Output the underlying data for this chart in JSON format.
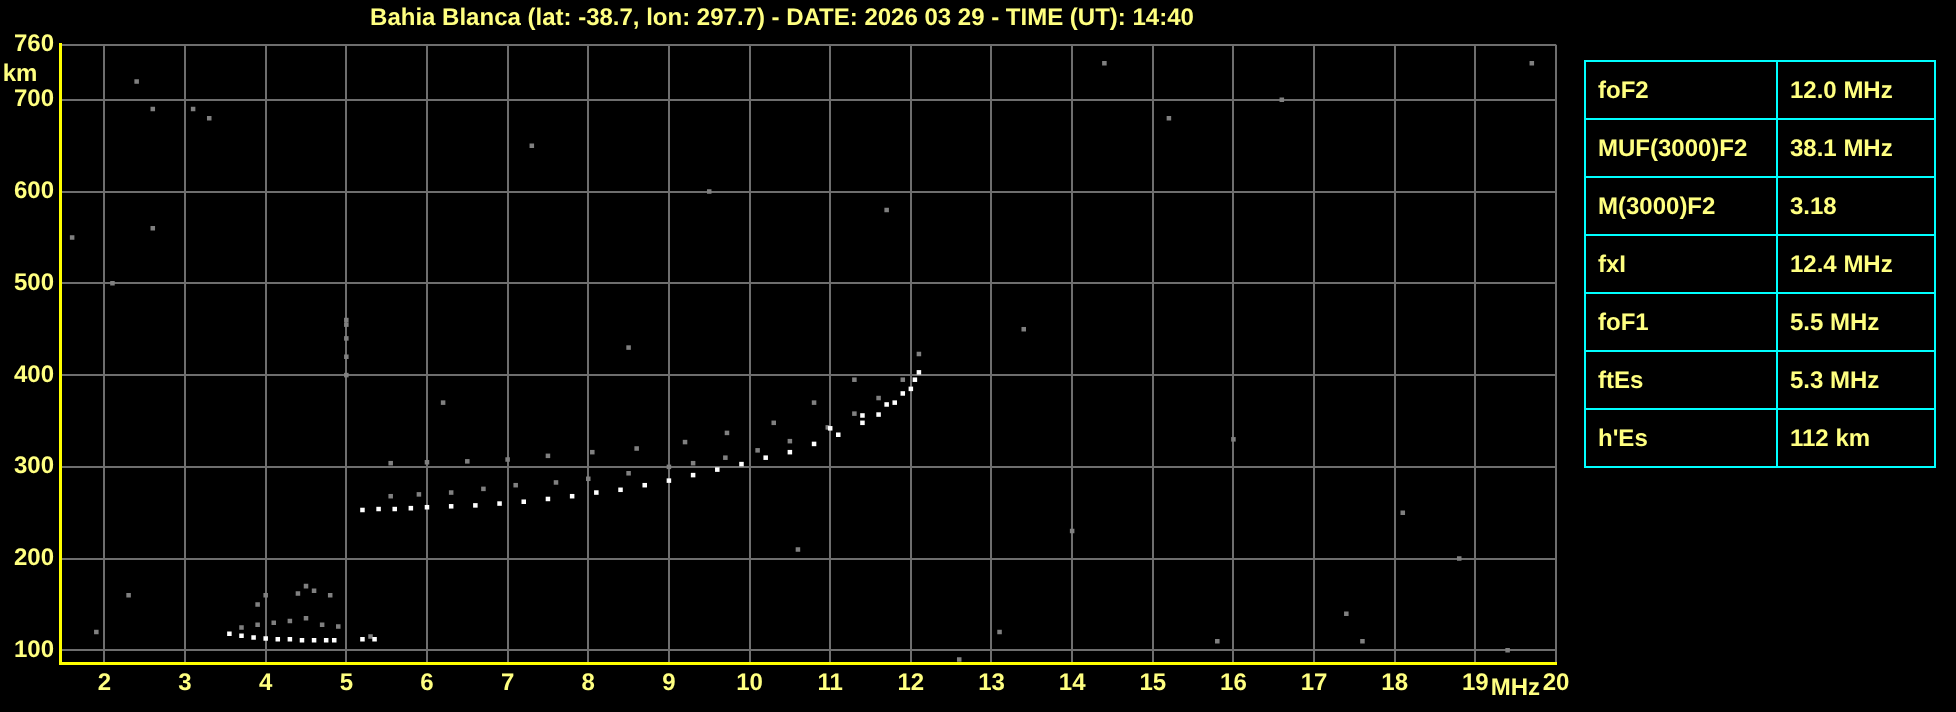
{
  "chart_data": {
    "type": "scatter",
    "title": "Bahia Blanca (lat: -38.7, lon: 297.7) - DATE: 2026 03 29 - TIME (UT): 14:40",
    "xlabel": "MHz",
    "ylabel": "km",
    "xlim": [
      1.45,
      20
    ],
    "ylim": [
      86,
      760
    ],
    "xticks": [
      2,
      3,
      4,
      5,
      6,
      7,
      8,
      9,
      10,
      11,
      12,
      13,
      14,
      15,
      16,
      17,
      18,
      19,
      20
    ],
    "yticks": [
      100,
      200,
      300,
      400,
      500,
      600,
      700,
      760
    ],
    "grid": true,
    "annotations": [
      "foF2",
      "12.0 MHz",
      "MUF(3000)F2",
      "38.1 MHz",
      "M(3000)F2",
      "3.18",
      "fxI",
      "12.4 MHz",
      "foF1",
      "5.5 MHz",
      "ftEs",
      "5.3 MHz",
      "h'Es",
      "112 km"
    ],
    "legend": false,
    "marker": "square",
    "series": [
      {
        "color": "#ffffff",
        "x": [
          3.55,
          3.7,
          3.85,
          4.0,
          4.15,
          4.3,
          4.45,
          4.6,
          4.75,
          4.85,
          5.2,
          5.35,
          5.2,
          5.4,
          5.6,
          5.8,
          6.0,
          6.3,
          6.6,
          6.9,
          7.2,
          7.5,
          7.8,
          8.1,
          8.4,
          8.7,
          9.0,
          9.3,
          9.6,
          9.9,
          10.2,
          10.5,
          10.8,
          11.1,
          11.4,
          11.6,
          11.8,
          12.0,
          12.1,
          11.0,
          11.4,
          11.7,
          11.9,
          12.05
        ],
        "values": [
          118,
          116,
          114,
          113,
          112,
          112,
          111,
          111,
          111,
          111,
          112,
          112,
          253,
          254,
          254,
          255,
          256,
          257,
          258,
          260,
          262,
          265,
          268,
          272,
          275,
          280,
          285,
          291,
          297,
          303,
          310,
          316,
          325,
          335,
          348,
          357,
          370,
          385,
          403,
          342,
          356,
          368,
          380,
          395
        ]
      },
      {
        "color": "#808080",
        "x": [
          3.7,
          3.9,
          4.1,
          4.3,
          4.5,
          4.7,
          4.9,
          4.0,
          4.4,
          4.6,
          4.8,
          5.3,
          5.55,
          5.9,
          6.3,
          6.7,
          7.1,
          7.6,
          8.0,
          8.5,
          9.0,
          9.3,
          9.7,
          10.1,
          10.5,
          10.97,
          11.3,
          11.6,
          11.9,
          12.1,
          5.55,
          6.0,
          6.5,
          7.0,
          7.5,
          8.05,
          8.6,
          9.2,
          9.72,
          10.3,
          10.8,
          11.3,
          5.0,
          5.0,
          5.0,
          5.0,
          5.0,
          1.6,
          2.1,
          2.4,
          2.6,
          1.9,
          2.3,
          3.3,
          3.9,
          4.5,
          6.2,
          7.3,
          9.5,
          10.6,
          11.7,
          13.1,
          14.4,
          15.2,
          16.0,
          16.6,
          17.4,
          18.1,
          18.8,
          19.4,
          19.7,
          15.8,
          17.6,
          14.0,
          12.6,
          13.4,
          8.5,
          3.1,
          2.6
        ],
        "values": [
          125,
          128,
          130,
          132,
          135,
          128,
          126,
          160,
          162,
          165,
          160,
          115,
          268,
          270,
          272,
          276,
          280,
          283,
          287,
          293,
          300,
          304,
          310,
          318,
          328,
          343,
          358,
          375,
          395,
          423,
          304,
          305,
          306,
          308,
          312,
          316,
          320,
          327,
          337,
          348,
          370,
          395,
          400,
          420,
          440,
          455,
          460,
          550,
          500,
          720,
          690,
          120,
          160,
          680,
          150,
          170,
          370,
          650,
          600,
          210,
          580,
          120,
          740,
          680,
          330,
          700,
          140,
          250,
          200,
          100,
          740,
          110,
          110,
          230,
          90,
          450,
          430,
          690,
          560
        ]
      }
    ]
  }
}
